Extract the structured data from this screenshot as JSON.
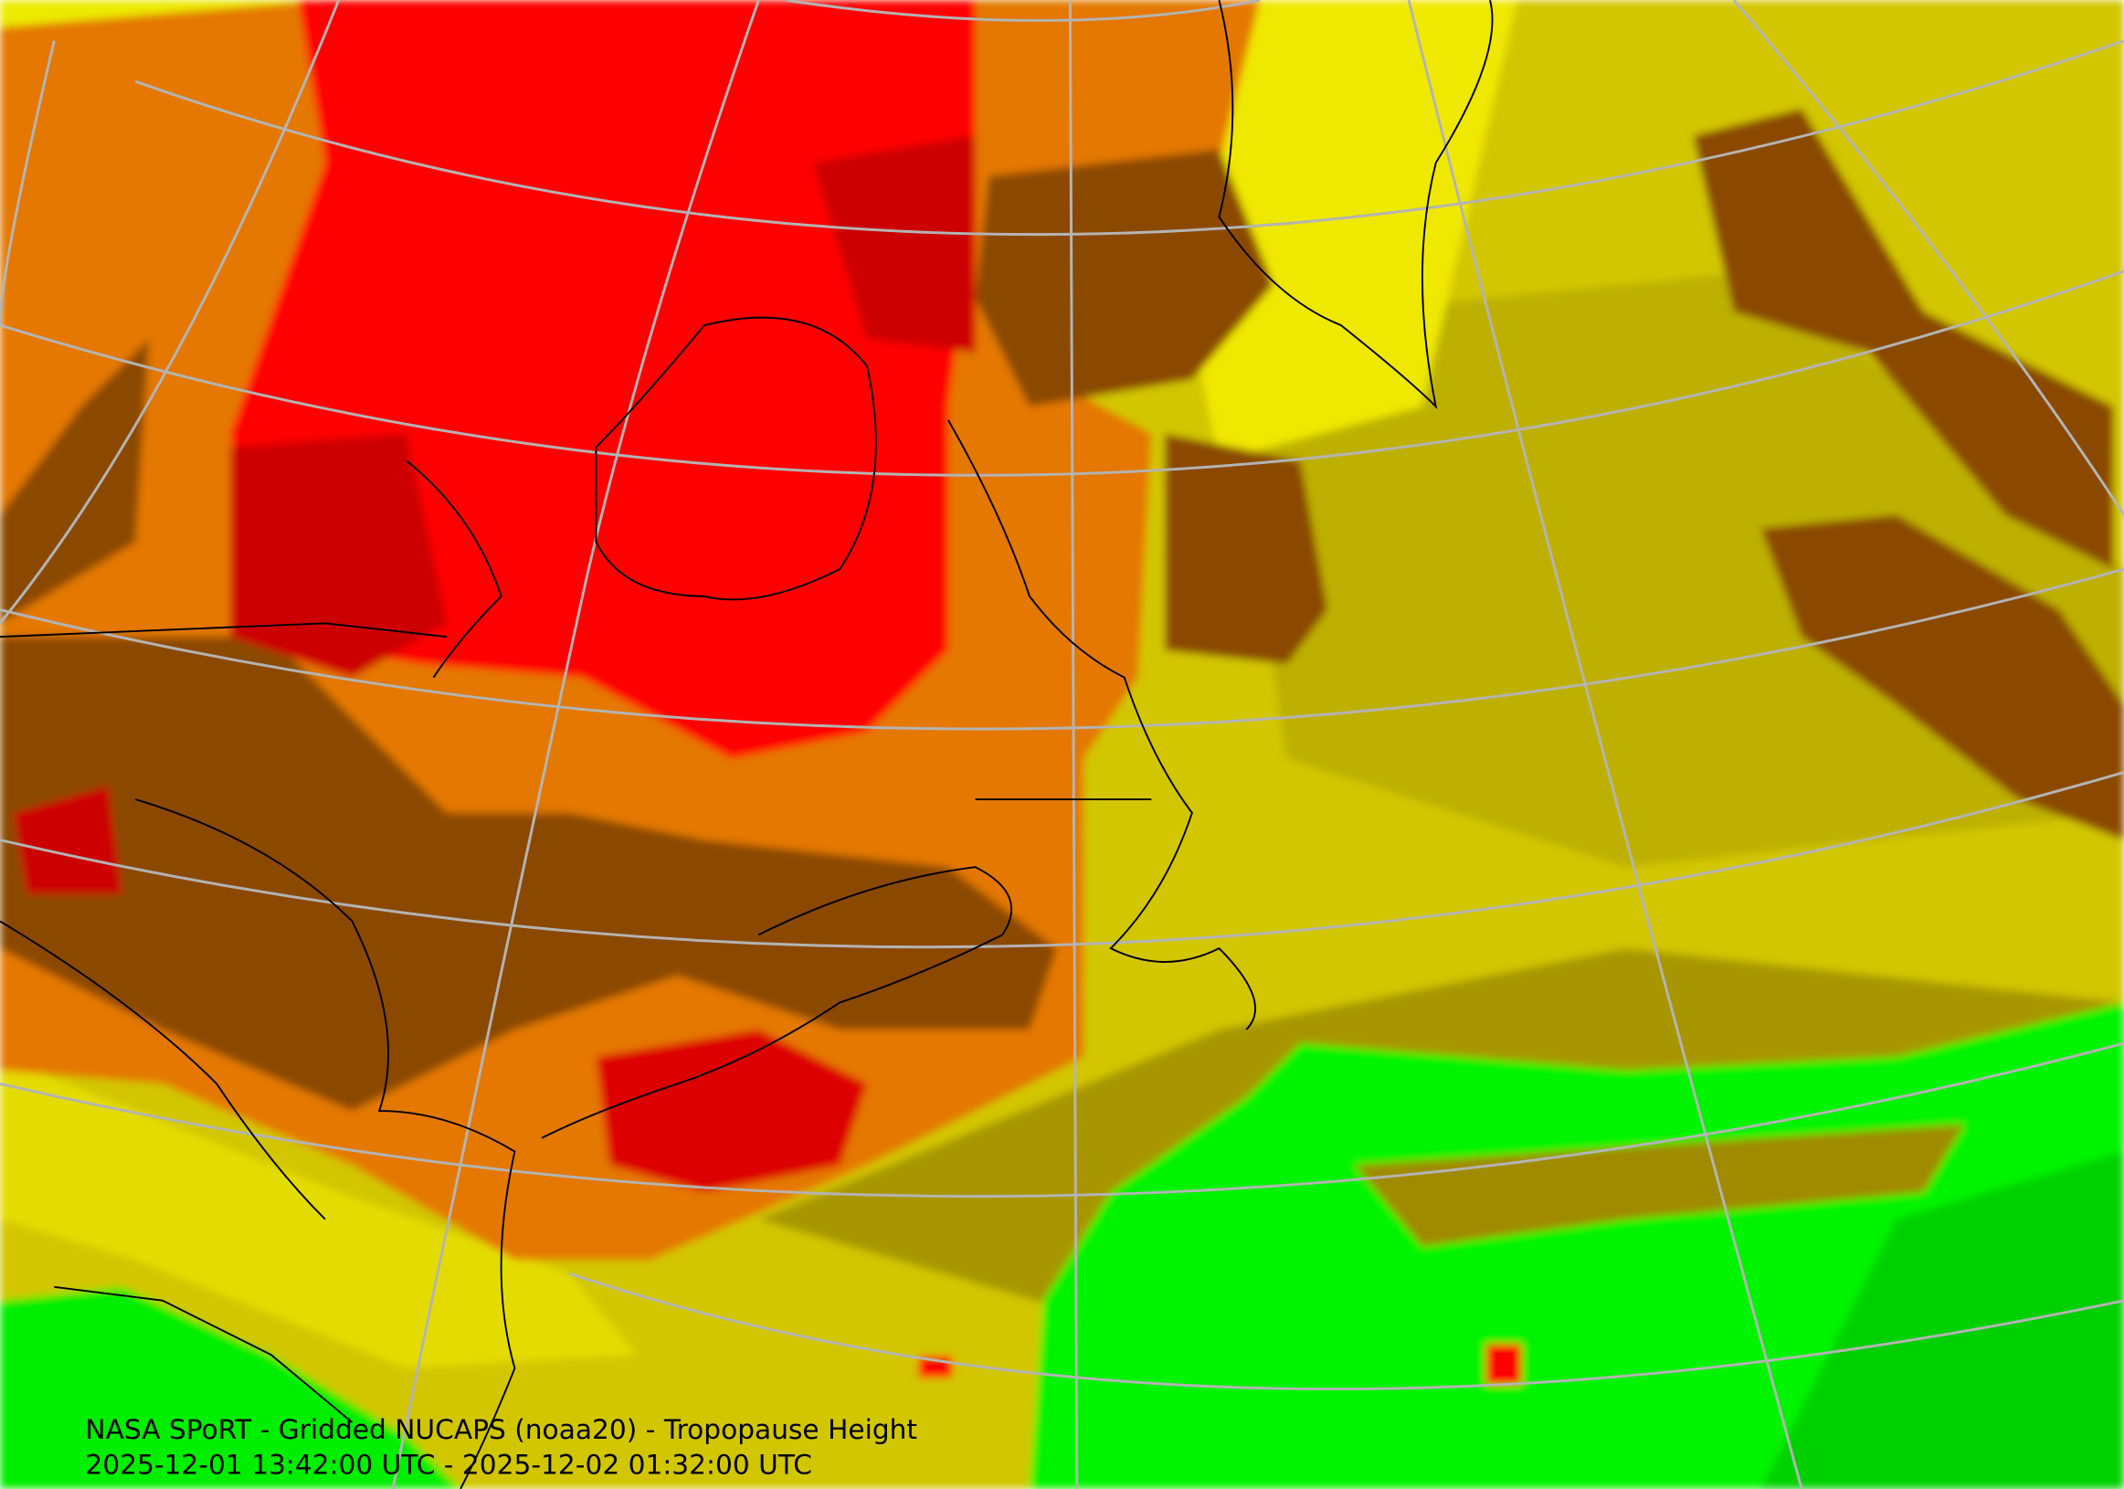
{
  "caption": {
    "title": "NASA SPoRT - Gridded NUCAPS (noaa20) - Tropopause Height",
    "time_range": "2025-12-01 13:42:00 UTC - 2025-12-02 01:32:00 UTC"
  }
}
